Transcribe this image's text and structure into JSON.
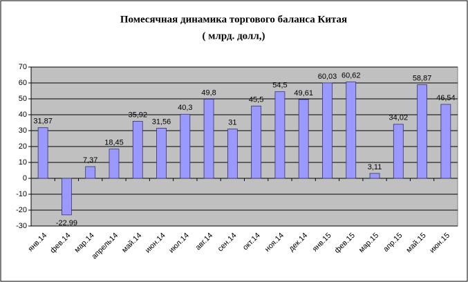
{
  "chart_data": {
    "type": "bar",
    "title": "Помесячная динамика  торгового баланса Китая",
    "subtitle": "( млрд. долл,)",
    "categories": [
      "янв.14",
      "фев.14",
      "мар.14",
      "апрель14",
      "май.14",
      "июн.14",
      "июл.14",
      "авг.14",
      "сен.14",
      "окт.14",
      "ноя.14",
      "дек.14",
      "янв.15",
      "фев.15",
      "мар.15",
      "апр.15",
      "май.15",
      "июн.15"
    ],
    "values": [
      31.87,
      -22.99,
      7.37,
      18.45,
      35.92,
      31.56,
      40.3,
      49.8,
      31,
      45.5,
      54.5,
      49.61,
      60.03,
      60.62,
      3.11,
      34.02,
      58.87,
      46.54
    ],
    "value_labels": [
      "31,87",
      "-22,99",
      "7,37",
      "18,45",
      "35,92",
      "31,56",
      "40,3",
      "49,8",
      "31",
      "45,5",
      "54,5",
      "49,61",
      "60,03",
      "60,62",
      "3,11",
      "34,02",
      "58,87",
      "46,54"
    ],
    "color": "#9999ff",
    "ylim": [
      -30,
      70
    ],
    "yticks": [
      -30,
      -20,
      -10,
      0,
      10,
      20,
      30,
      40,
      50,
      60,
      70
    ],
    "grid": true
  }
}
